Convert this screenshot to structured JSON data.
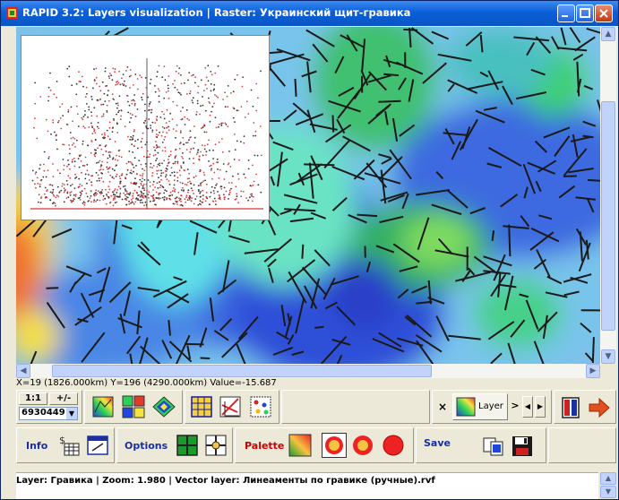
{
  "window": {
    "title": "RAPID 3.2:   Layers visualization   |   Raster: Украинский щит-гравика"
  },
  "status_coords": "X=19 (1826.000km)  Y=196 (4290.000km)  Value=-15.687",
  "toolbar": {
    "scale_1_1": "1:1",
    "plus_minus": "+/-",
    "value_field": "6930449",
    "layer_label": "Layer",
    "close_x": "×"
  },
  "options_bar": {
    "info": "Info",
    "options": "Options",
    "palette": "Palette",
    "save": "Save"
  },
  "statusbar": {
    "text": "Layer: Гравика    |  Zoom: 1.980   |  Vector layer: Линеаменты по гравике (ручные).rvf"
  },
  "colors": {
    "title_bar": "#0b55c4",
    "label_red": "#cc0000",
    "label_blue": "#1a2fa0"
  }
}
